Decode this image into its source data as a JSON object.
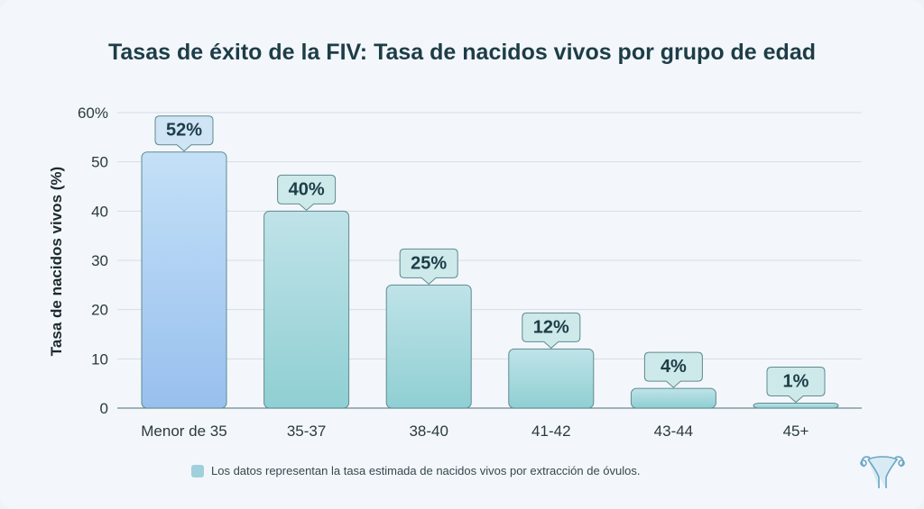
{
  "chart_data": {
    "type": "bar",
    "title": "Tasas de éxito de la FIV: Tasa de nacidos vivos por grupo de edad",
    "xlabel": "",
    "ylabel": "Tasa de nacidos vivos (%)",
    "categories": [
      "Menor de 35",
      "35-37",
      "38-40",
      "41-42",
      "43-44",
      "45+"
    ],
    "values": [
      52,
      40,
      25,
      12,
      4,
      1
    ],
    "data_labels": [
      "52%",
      "40%",
      "25%",
      "12%",
      "4%",
      "1%"
    ],
    "ylim": [
      0,
      60
    ],
    "yticks": [
      0,
      10,
      20,
      30,
      40,
      50,
      60
    ],
    "ytick_labels": [
      "0",
      "10",
      "20",
      "30",
      "40",
      "50",
      "60%"
    ],
    "grid": true,
    "legend": {
      "text": "Los datos representan la tasa estimada de nacidos vivos por extracción de óvulos.",
      "placement": "bottom"
    },
    "colors": {
      "first_bar": "#a9cdf0",
      "bars": "#a8dbd8",
      "title": "#1d3d47"
    }
  },
  "icons": {
    "logo": "uterus-icon"
  }
}
